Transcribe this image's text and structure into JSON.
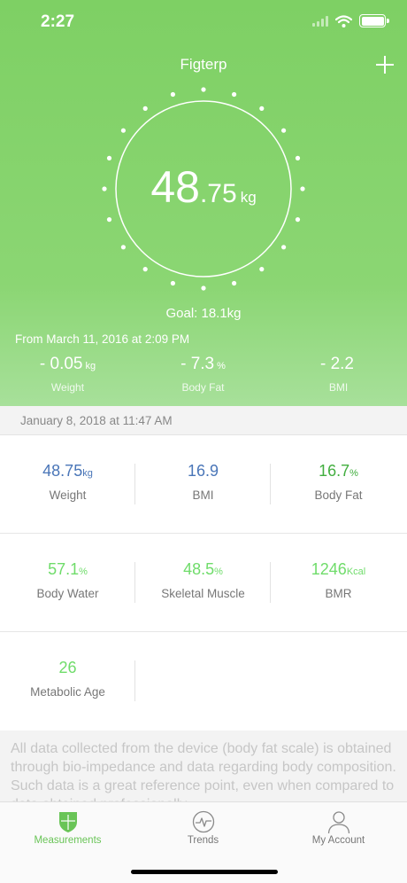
{
  "status_bar": {
    "time": "2:27"
  },
  "header": {
    "title": "Figterp"
  },
  "hero": {
    "weight_integer": "48",
    "weight_decimal": ".75",
    "weight_unit": "kg",
    "goal": "Goal: 18.1kg",
    "from_date": "From March 11, 2016 at 2:09 PM",
    "deltas": [
      {
        "value": "- 0.05",
        "unit": "kg",
        "label": "Weight"
      },
      {
        "value": "- 7.3",
        "unit": "%",
        "label": "Body Fat"
      },
      {
        "value": "- 2.2",
        "unit": "",
        "label": "BMI"
      }
    ]
  },
  "measurement_date": "January 8, 2018 at 11:47 AM",
  "metrics": {
    "weight": {
      "value": "48.75",
      "unit": "kg",
      "label": "Weight"
    },
    "bmi": {
      "value": "16.9",
      "unit": "",
      "label": "BMI"
    },
    "body_fat": {
      "value": "16.7",
      "unit": "%",
      "label": "Body Fat"
    },
    "body_water": {
      "value": "57.1",
      "unit": "%",
      "label": "Body Water"
    },
    "skeletal_muscle": {
      "value": "48.5",
      "unit": "%",
      "label": "Skeletal Muscle"
    },
    "bmr": {
      "value": "1246",
      "unit": "Kcal",
      "label": "BMR"
    },
    "metabolic_age": {
      "value": "26",
      "unit": "",
      "label": "Metabolic Age"
    }
  },
  "disclaimer": "All data collected from the device (body fat scale) is obtained through bio-impedance and data regarding body composition. Such data is a great reference point, even when compared to data obtained professionally",
  "tabs": [
    {
      "label": "Measurements",
      "icon": "shield-icon",
      "active": true
    },
    {
      "label": "Trends",
      "icon": "heartbeat-icon",
      "active": false
    },
    {
      "label": "My Account",
      "icon": "person-icon",
      "active": false
    }
  ],
  "colors": {
    "accent_green": "#7ed064",
    "metric_blue": "#4a76b8",
    "metric_green_dark": "#42ae3f",
    "metric_green_light": "#6fdc6a"
  }
}
